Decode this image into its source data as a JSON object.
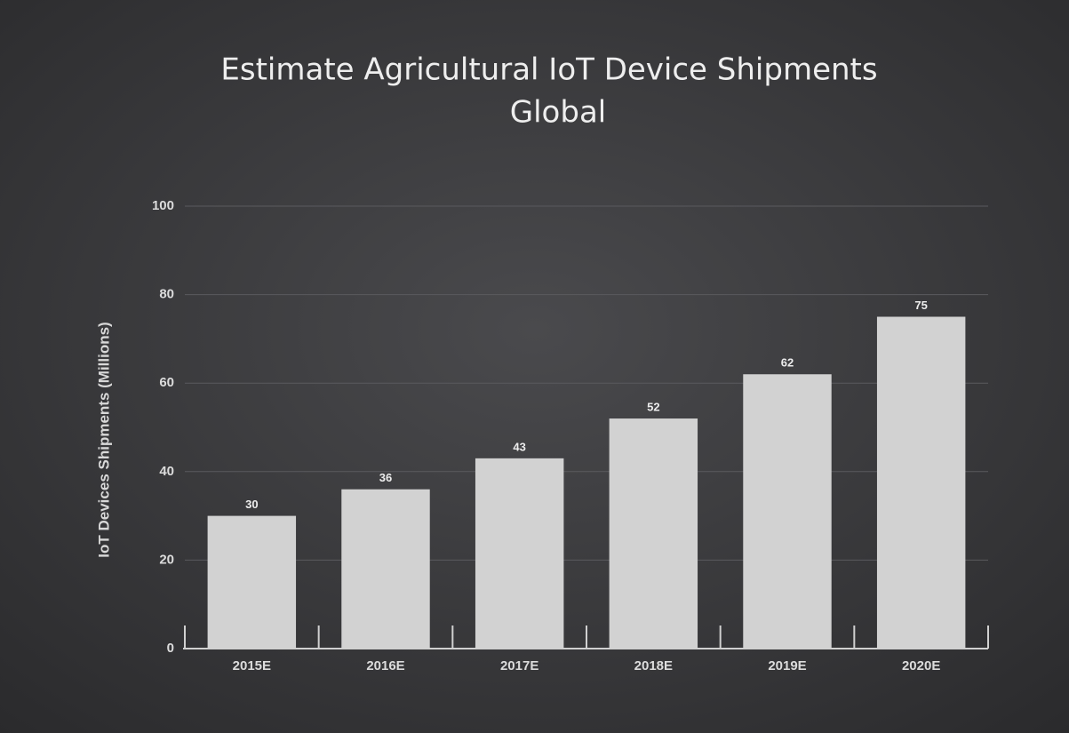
{
  "chart_data": {
    "type": "bar",
    "title": "Estimate Agricultural IoT Device Shipments",
    "subtitle": "Global",
    "y_label": "IoT Devices Shipments (Millions)",
    "categories": [
      "2015E",
      "2016E",
      "2017E",
      "2018E",
      "2019E",
      "2020E"
    ],
    "values": [
      30,
      36,
      43,
      52,
      62,
      75
    ],
    "color": "#d2d2d2",
    "ylim": [
      0,
      100
    ],
    "yticks": [
      0,
      20,
      40,
      60,
      80,
      100
    ],
    "grid": true
  }
}
